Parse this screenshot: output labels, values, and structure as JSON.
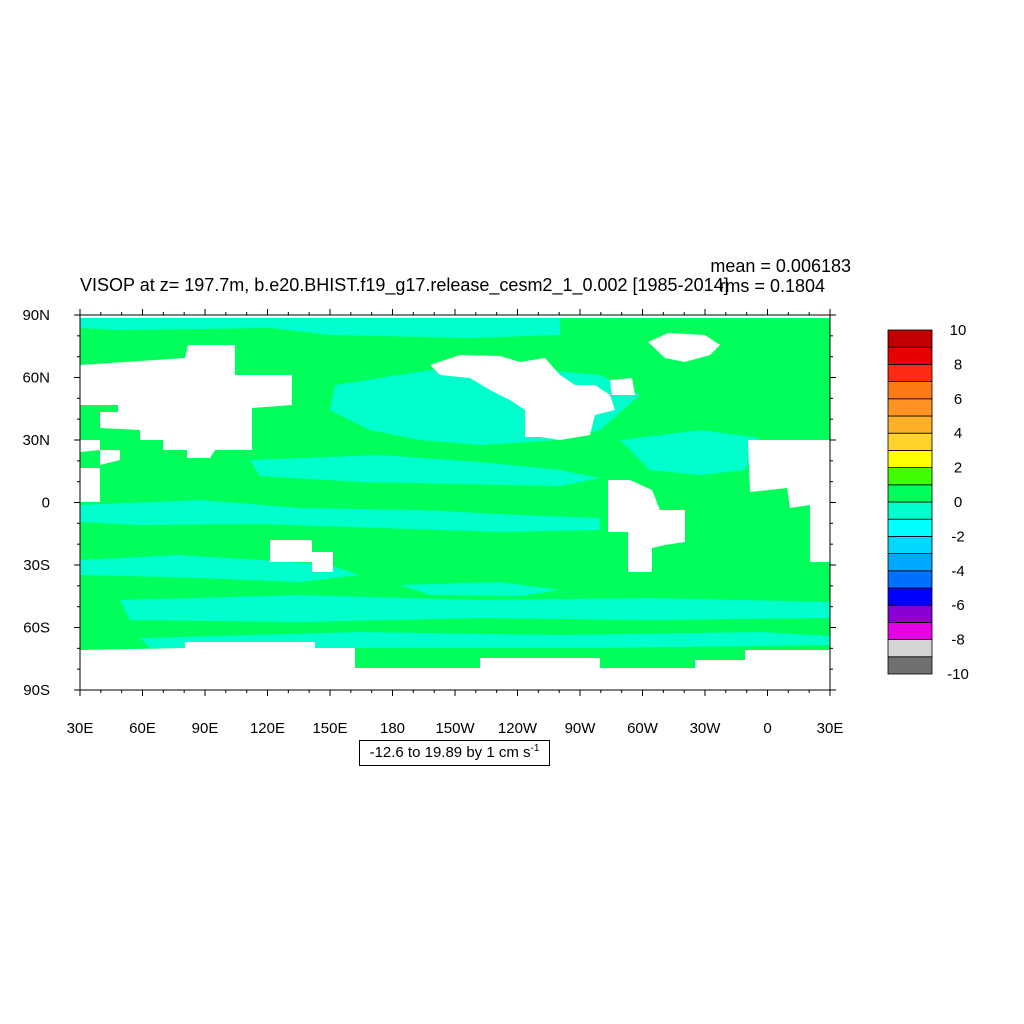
{
  "title": "VISOP at z= 197.7m, b.e20.BHIST.f19_g17.release_cesm2_1_0.002 [1985-2014]",
  "stats": {
    "mean": "mean = 0.006183",
    "rms": "rms = 0.1804"
  },
  "info_box": {
    "text": "-12.6 to 19.89 by 1 cm s",
    "superscript": "-1"
  },
  "x_ticks": [
    "30E",
    "60E",
    "90E",
    "120E",
    "150E",
    "180",
    "150W",
    "120W",
    "90W",
    "60W",
    "30W",
    "0",
    "30E"
  ],
  "y_ticks": [
    "90N",
    "60N",
    "30N",
    "0",
    "30S",
    "60S",
    "90S"
  ],
  "colorbar": {
    "colors": [
      "#707070",
      "#d4d4d4",
      "#e600e6",
      "#8a00d4",
      "#0000ff",
      "#0070ff",
      "#00a8ff",
      "#00d8ff",
      "#00ffff",
      "#00ffcc",
      "#00ff5a",
      "#40ff00",
      "#ffff00",
      "#ffd42a",
      "#ffb02a",
      "#ff9424",
      "#ff7a14",
      "#ff2a14",
      "#e60000",
      "#c00000"
    ],
    "labels": [
      "-10",
      "-8",
      "-6",
      "-4",
      "-2",
      "0",
      "2",
      "4",
      "6",
      "8",
      "10"
    ]
  },
  "map_colors": {
    "background_field": "#00ff5a",
    "negative_field": "#00ffcc",
    "land": "#ffffff"
  }
}
